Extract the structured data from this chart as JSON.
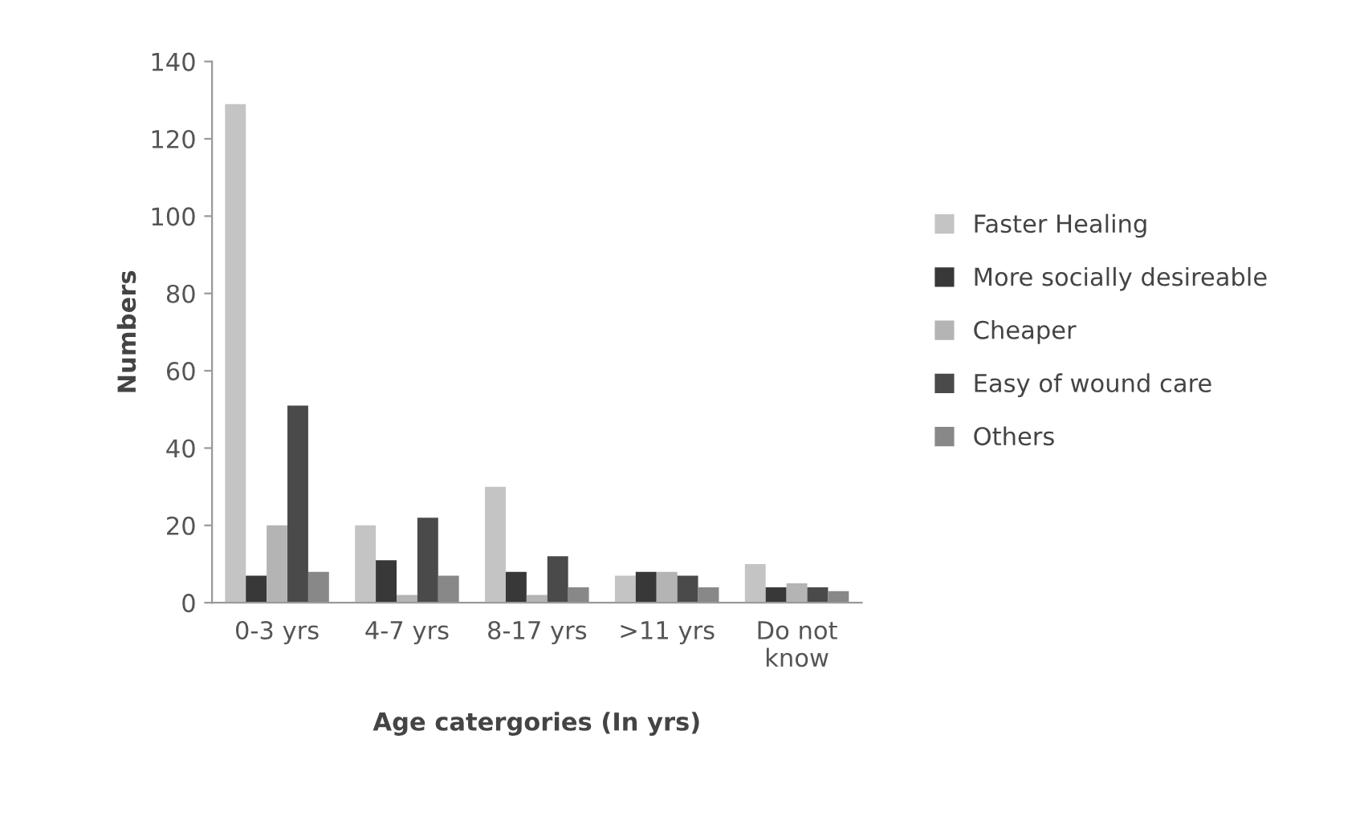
{
  "chart_data": {
    "type": "bar",
    "xlabel": "Age catergories (In yrs)",
    "ylabel": "Numbers",
    "categories": [
      "0-3 yrs",
      "4-7 yrs",
      "8-17 yrs",
      ">11 yrs",
      "Do not\nknow"
    ],
    "series": [
      {
        "name": "Faster Healing",
        "color": "#c4c4c4",
        "values": [
          129,
          20,
          30,
          7,
          10
        ]
      },
      {
        "name": "More socially desireable",
        "color": "#383838",
        "values": [
          7,
          11,
          8,
          8,
          4
        ]
      },
      {
        "name": "Cheaper",
        "color": "#b4b4b4",
        "values": [
          20,
          2,
          2,
          8,
          5
        ]
      },
      {
        "name": "Easy of wound care",
        "color": "#4a4a4a",
        "values": [
          51,
          22,
          12,
          7,
          4
        ]
      },
      {
        "name": "Others",
        "color": "#888888",
        "values": [
          8,
          7,
          4,
          4,
          3
        ]
      }
    ],
    "ylim": [
      0,
      140
    ],
    "yticks": [
      0,
      20,
      40,
      60,
      80,
      100,
      120,
      140
    ],
    "grid": false,
    "legend": "right"
  }
}
